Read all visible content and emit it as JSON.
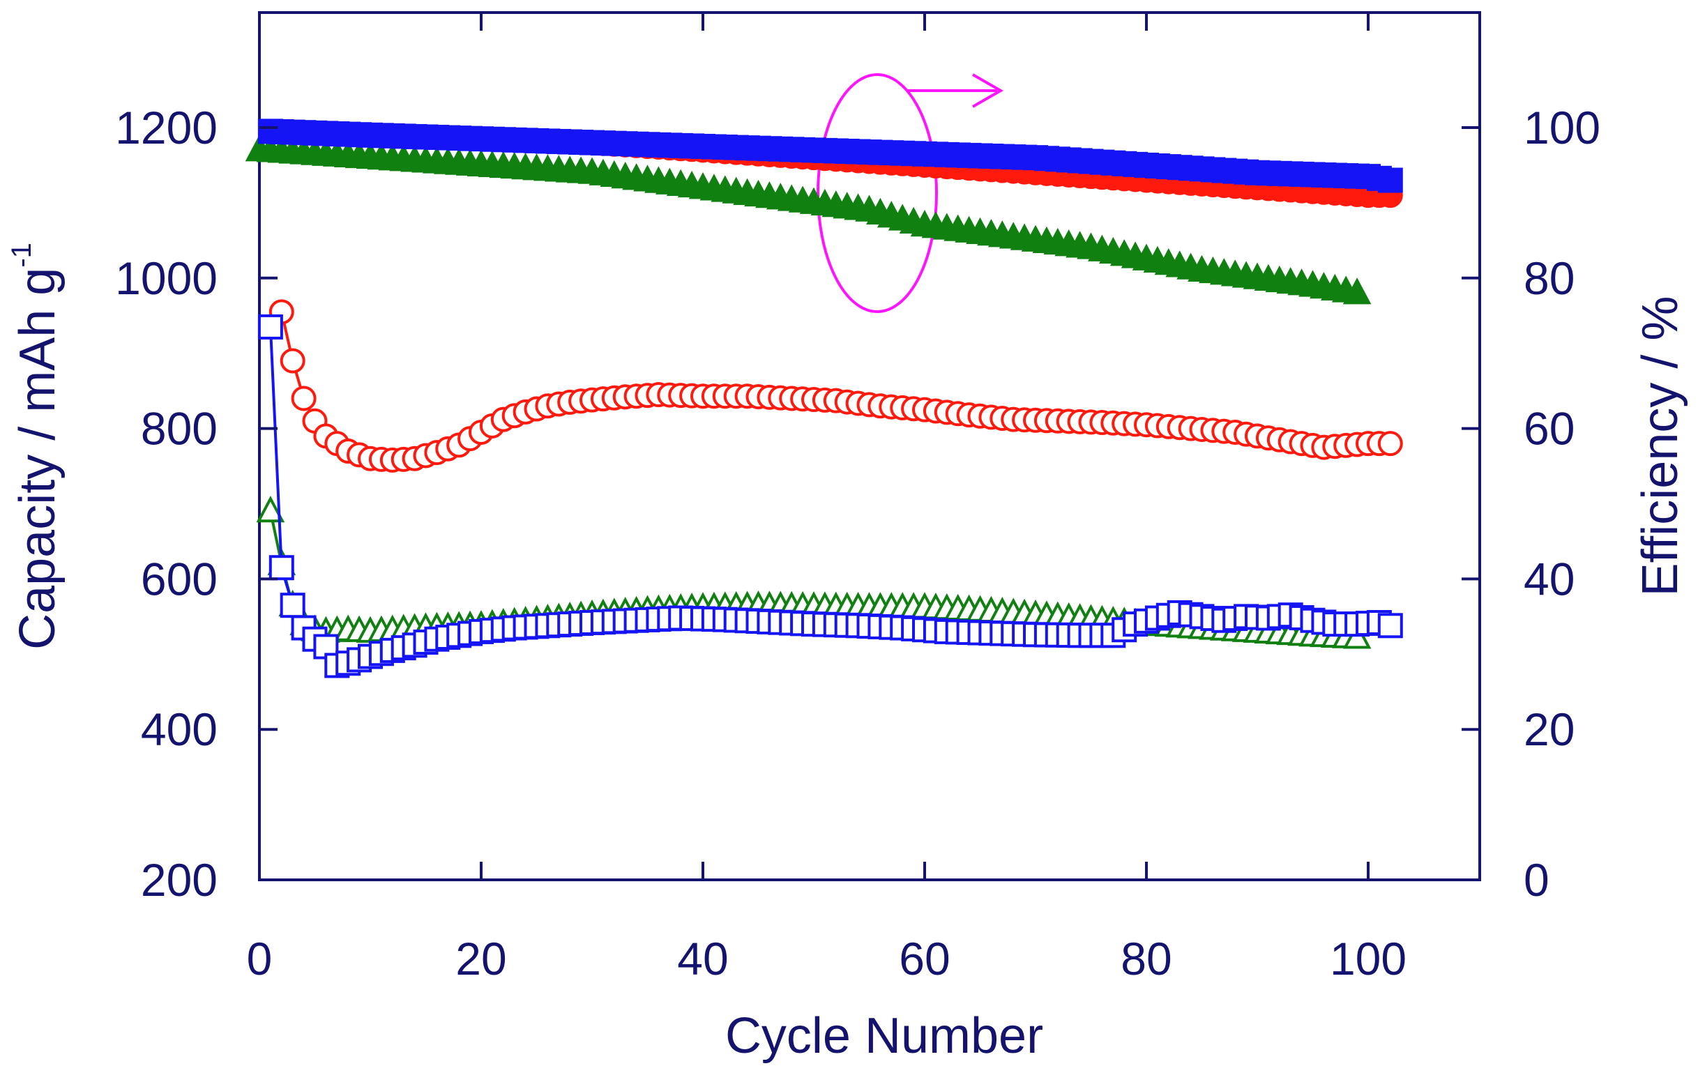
{
  "chart_data": {
    "type": "scatter",
    "title": "",
    "xlabel": "Cycle Number",
    "ylabel_left": {
      "main": "Capacity / mAh g",
      "superscript": "-1"
    },
    "ylabel_right": "Efficiency / %",
    "xlim": [
      0,
      110
    ],
    "ylim_left": [
      200,
      1350
    ],
    "ylim_right": [
      0,
      115
    ],
    "x_ticks": [
      0,
      20,
      40,
      60,
      80,
      100
    ],
    "y_left_ticks": [
      200,
      400,
      600,
      800,
      1000,
      1200
    ],
    "y_right_ticks": [
      0,
      20,
      40,
      60,
      80,
      100
    ],
    "grid": false,
    "annotation": "ellipse around efficiency curves with arrow pointing to right axis",
    "colors": {
      "axis": "#14146e",
      "red": "#ff1a0d",
      "green": "#108010",
      "blue": "#1414f5",
      "annotation": "#ff14ff"
    },
    "series": [
      {
        "name": "capacity-red-open-circles",
        "axis": "left",
        "marker": "circle",
        "filled": false,
        "color": "#ff1a0d",
        "x": [
          2,
          3,
          4,
          5,
          6,
          7,
          8,
          10,
          12,
          14,
          16,
          18,
          20,
          22,
          24,
          26,
          28,
          30,
          33,
          36,
          40,
          44,
          48,
          52,
          56,
          60,
          64,
          68,
          72,
          76,
          80,
          84,
          88,
          92,
          96,
          100,
          102
        ],
        "values": [
          955,
          890,
          840,
          810,
          790,
          780,
          770,
          760,
          758,
          760,
          768,
          778,
          795,
          812,
          822,
          830,
          835,
          838,
          842,
          845,
          843,
          843,
          840,
          837,
          830,
          825,
          818,
          812,
          810,
          808,
          805,
          800,
          795,
          785,
          775,
          780,
          780
        ]
      },
      {
        "name": "capacity-green-open-triangles",
        "axis": "left",
        "marker": "triangle",
        "filled": false,
        "color": "#108010",
        "x": [
          1,
          2,
          3,
          4,
          5,
          6,
          8,
          10,
          15,
          20,
          25,
          30,
          35,
          40,
          45,
          50,
          55,
          60,
          65,
          70,
          75,
          80,
          85,
          90,
          95,
          99
        ],
        "values": [
          690,
          620,
          565,
          540,
          532,
          530,
          532,
          530,
          535,
          538,
          545,
          552,
          558,
          562,
          564,
          563,
          562,
          562,
          558,
          552,
          546,
          540,
          535,
          530,
          525,
          522
        ]
      },
      {
        "name": "capacity-blue-open-squares",
        "axis": "left",
        "marker": "square",
        "filled": false,
        "color": "#1414f5",
        "x": [
          1,
          2,
          3,
          4,
          5,
          6,
          7,
          8,
          10,
          12,
          14,
          16,
          18,
          20,
          23,
          26,
          30,
          34,
          38,
          42,
          46,
          50,
          54,
          58,
          62,
          66,
          70,
          74,
          77,
          79,
          81,
          83,
          85,
          87,
          89,
          91,
          93,
          95,
          97,
          99,
          101,
          102
        ],
        "values": [
          935,
          615,
          565,
          535,
          520,
          510,
          485,
          488,
          497,
          505,
          512,
          520,
          525,
          530,
          535,
          538,
          542,
          545,
          548,
          546,
          543,
          540,
          538,
          535,
          530,
          528,
          526,
          525,
          525,
          540,
          548,
          555,
          550,
          545,
          550,
          548,
          552,
          545,
          540,
          540,
          542,
          538
        ]
      },
      {
        "name": "efficiency-red-filled-circles",
        "axis": "right",
        "marker": "circle",
        "filled": true,
        "color": "#ff1a0d",
        "x": [
          1,
          10,
          20,
          30,
          40,
          50,
          60,
          70,
          80,
          90,
          100,
          102
        ],
        "values": [
          99.5,
          99.0,
          98.5,
          98.0,
          97.0,
          96.0,
          95.0,
          94.0,
          93.0,
          92.0,
          91.0,
          91.0
        ]
      },
      {
        "name": "efficiency-green-filled-triangles",
        "axis": "right",
        "marker": "triangle",
        "filled": true,
        "color": "#108010",
        "x": [
          0,
          10,
          20,
          30,
          40,
          50,
          55,
          60,
          65,
          70,
          75,
          80,
          85,
          90,
          95,
          99
        ],
        "values": [
          97.0,
          96.0,
          95.0,
          94.0,
          92.0,
          90.0,
          89.0,
          87.0,
          86.0,
          85.0,
          84.0,
          82.5,
          81.0,
          80.0,
          79.0,
          78.0
        ]
      },
      {
        "name": "efficiency-blue-filled-squares",
        "axis": "right",
        "marker": "square",
        "filled": true,
        "color": "#1414f5",
        "x": [
          1,
          10,
          20,
          30,
          40,
          50,
          60,
          70,
          80,
          90,
          100,
          102
        ],
        "values": [
          99.5,
          99.0,
          98.5,
          98.0,
          97.5,
          97.0,
          96.5,
          96.0,
          95.0,
          94.0,
          93.5,
          93.0
        ]
      }
    ]
  }
}
